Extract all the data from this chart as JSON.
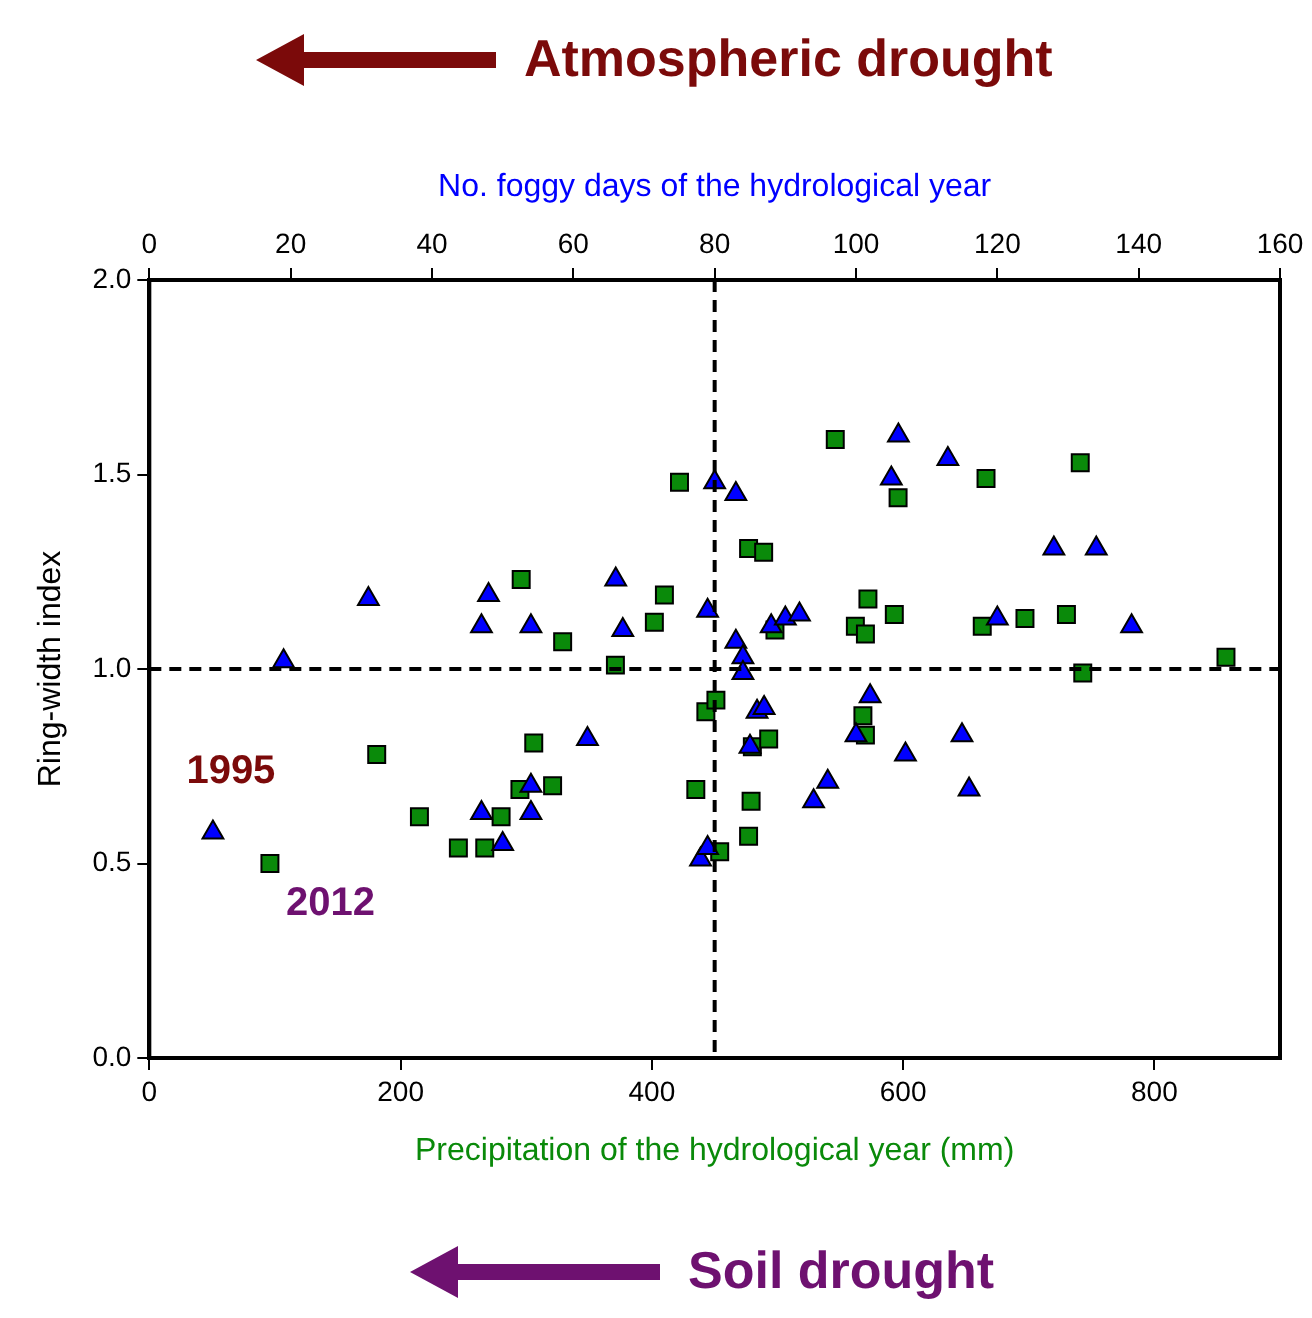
{
  "chart_data": {
    "type": "scatter",
    "xlabel": "Precipitation of the hydrological year (mm)",
    "x2label": "No. foggy days of the hydrological year",
    "ylabel": "Ring-width index",
    "xlim": [
      0,
      900
    ],
    "xticks": [
      0,
      200,
      400,
      600,
      800
    ],
    "x2lim": [
      0,
      160
    ],
    "x2ticks": [
      0,
      20,
      40,
      60,
      80,
      100,
      120,
      140,
      160
    ],
    "ylim": [
      0,
      2
    ],
    "yticks": [
      {
        "value": 0,
        "label": "0.0"
      },
      {
        "value": 0.5,
        "label": "0.5"
      },
      {
        "value": 1,
        "label": "1.0"
      },
      {
        "value": 1.5,
        "label": "1.5"
      },
      {
        "value": 2,
        "label": "2.0"
      }
    ],
    "grid": false,
    "legend": false,
    "series": [
      {
        "color": "#0a8a0a",
        "marker": "square",
        "x": [
          96,
          181,
          215,
          246,
          267,
          280,
          295,
          306,
          321,
          296,
          329,
          371,
          402,
          410,
          422,
          435,
          443,
          451,
          454,
          477,
          479,
          480,
          493,
          477,
          489,
          498,
          546,
          562,
          568,
          570,
          570,
          572,
          593,
          596,
          663,
          666,
          697,
          730,
          741,
          743,
          857
        ],
        "values": [
          0.5,
          0.78,
          0.62,
          0.54,
          0.54,
          0.62,
          0.69,
          0.81,
          0.7,
          1.23,
          1.07,
          1.01,
          1.12,
          1.19,
          1.48,
          0.69,
          0.89,
          0.92,
          0.53,
          0.57,
          0.66,
          0.8,
          0.82,
          1.31,
          1.3,
          1.1,
          1.59,
          1.11,
          0.88,
          0.83,
          1.09,
          1.18,
          1.14,
          1.44,
          1.11,
          1.49,
          1.13,
          1.14,
          1.53,
          0.99,
          1.03
        ]
      },
      {
        "color": "#0000ff",
        "marker": "triangle",
        "axis": "x2",
        "x": [
          9,
          19,
          31,
          47,
          47,
          48,
          50,
          54,
          54,
          54,
          62,
          66,
          67,
          78,
          79,
          79,
          80,
          83,
          83,
          84,
          84,
          85,
          86,
          87,
          88,
          90,
          92,
          94,
          96,
          100,
          102,
          105,
          106,
          107,
          113,
          115,
          116,
          120,
          128,
          134,
          139
        ],
        "values": [
          0.58,
          1.02,
          1.18,
          1.11,
          0.63,
          1.19,
          0.55,
          0.7,
          0.63,
          1.11,
          0.82,
          1.23,
          1.1,
          0.51,
          0.54,
          1.15,
          1.48,
          1.07,
          1.45,
          1.03,
          0.99,
          0.8,
          0.89,
          0.9,
          1.11,
          1.13,
          1.14,
          0.66,
          0.71,
          0.83,
          0.93,
          1.49,
          1.6,
          0.78,
          1.54,
          0.83,
          0.69,
          1.13,
          1.31,
          1.31,
          1.11
        ]
      }
    ],
    "ref_lines": [
      {
        "axis": "x",
        "value": 450,
        "line_style": "dashed"
      },
      {
        "axis": "y",
        "value": 1,
        "line_style": "dashed"
      }
    ],
    "annotations": [
      {
        "text": "1995",
        "x": 49,
        "y": 0.58
      },
      {
        "text": "2012",
        "x": 96,
        "y": 0.5
      },
      "Atmospheric drought",
      "Soil drought"
    ]
  }
}
